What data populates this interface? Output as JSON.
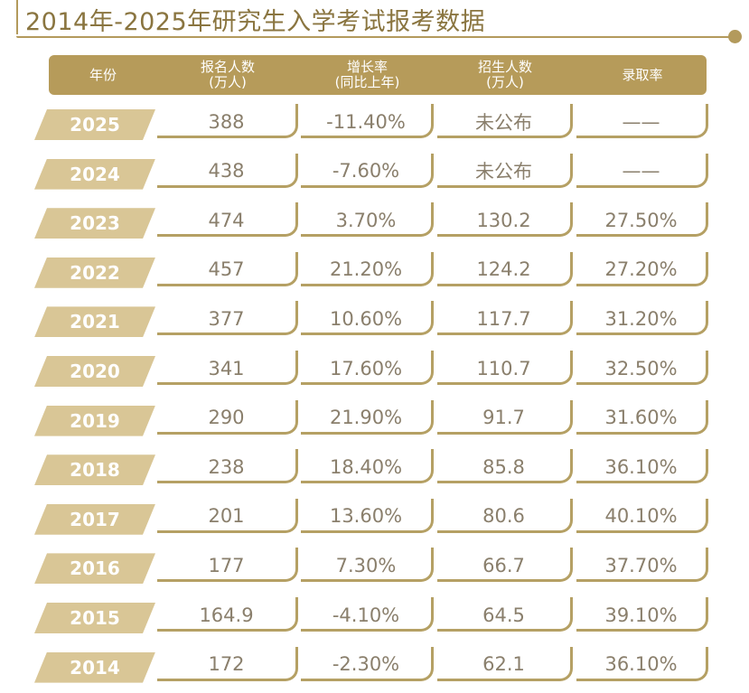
{
  "title": "2014年-2025年研究生入学考试报考数据",
  "headers": [
    {
      "line1": "年份",
      "line2": ""
    },
    {
      "line1": "报名人数",
      "line2": "(万人)"
    },
    {
      "line1": "增长率",
      "line2": "(同比上年)"
    },
    {
      "line1": "招生人数",
      "line2": "(万人)"
    },
    {
      "line1": "录取率",
      "line2": ""
    }
  ],
  "rows": [
    {
      "year": "2025",
      "applicants": "388",
      "growth": "-11.40%",
      "enrolled": "未公布",
      "rate": "——"
    },
    {
      "year": "2024",
      "applicants": "438",
      "growth": "-7.60%",
      "enrolled": "未公布",
      "rate": "——"
    },
    {
      "year": "2023",
      "applicants": "474",
      "growth": "3.70%",
      "enrolled": "130.2",
      "rate": "27.50%"
    },
    {
      "year": "2022",
      "applicants": "457",
      "growth": "21.20%",
      "enrolled": "124.2",
      "rate": "27.20%"
    },
    {
      "year": "2021",
      "applicants": "377",
      "growth": "10.60%",
      "enrolled": "117.7",
      "rate": "31.20%"
    },
    {
      "year": "2020",
      "applicants": "341",
      "growth": "17.60%",
      "enrolled": "110.7",
      "rate": "32.50%"
    },
    {
      "year": "2019",
      "applicants": "290",
      "growth": "21.90%",
      "enrolled": "91.7",
      "rate": "31.60%"
    },
    {
      "year": "2018",
      "applicants": "238",
      "growth": "18.40%",
      "enrolled": "85.8",
      "rate": "36.10%"
    },
    {
      "year": "2017",
      "applicants": "201",
      "growth": "13.60%",
      "enrolled": "80.6",
      "rate": "40.10%"
    },
    {
      "year": "2016",
      "applicants": "177",
      "growth": "7.30%",
      "enrolled": "66.7",
      "rate": "37.70%"
    },
    {
      "year": "2015",
      "applicants": "164.9",
      "growth": "-4.10%",
      "enrolled": "64.5",
      "rate": "39.10%"
    },
    {
      "year": "2014",
      "applicants": "172",
      "growth": "-2.30%",
      "enrolled": "62.1",
      "rate": "36.10%"
    }
  ],
  "colors": {
    "accent": "#b69b5a",
    "year_tag": "#d9c696",
    "text": "#8a7f6c"
  }
}
